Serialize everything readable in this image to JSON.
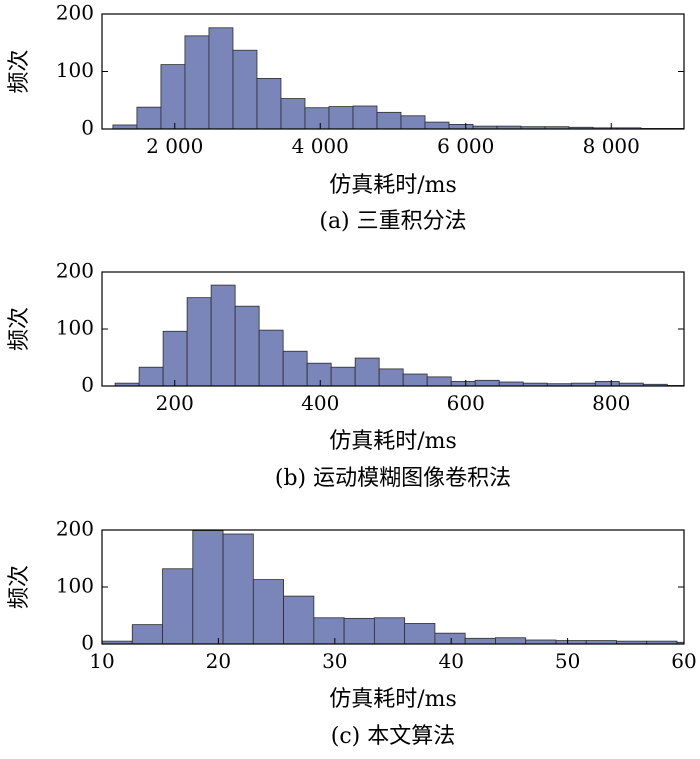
{
  "chart_data": [
    {
      "type": "bar",
      "caption": "(a) 三重积分法",
      "xlabel": "仿真耗时/ms",
      "ylabel": "频次",
      "xlim": [
        1000,
        9000
      ],
      "ylim": [
        0,
        200
      ],
      "xticks": [
        2000,
        4000,
        6000,
        8000
      ],
      "xtick_labels": [
        "2 000",
        "4 000",
        "6 000",
        "8 000"
      ],
      "yticks": [
        0,
        100,
        200
      ],
      "ytick_labels": [
        "0",
        "100",
        "200"
      ],
      "bin_start": 1150,
      "bin_width": 330,
      "values": [
        7,
        38,
        112,
        162,
        176,
        137,
        88,
        53,
        37,
        39,
        40,
        29,
        23,
        12,
        8,
        5,
        5,
        4,
        4,
        3,
        2,
        2,
        1,
        1
      ]
    },
    {
      "type": "bar",
      "caption": "(b) 运动模糊图像卷积法",
      "xlabel": "仿真耗时/ms",
      "ylabel": "频次",
      "xlim": [
        100,
        900
      ],
      "ylim": [
        0,
        200
      ],
      "xticks": [
        200,
        400,
        600,
        800
      ],
      "xtick_labels": [
        "200",
        "400",
        "600",
        "800"
      ],
      "yticks": [
        0,
        100,
        200
      ],
      "ytick_labels": [
        "0",
        "100",
        "200"
      ],
      "bin_start": 118,
      "bin_width": 33,
      "values": [
        5,
        33,
        96,
        155,
        177,
        140,
        98,
        61,
        40,
        33,
        49,
        30,
        21,
        16,
        8,
        10,
        7,
        5,
        4,
        5,
        8,
        5,
        3,
        1,
        1,
        1
      ]
    },
    {
      "type": "bar",
      "caption": "(c) 本文算法",
      "xlabel": "仿真耗时/ms",
      "ylabel": "频次",
      "xlim": [
        10,
        60
      ],
      "ylim": [
        0,
        200
      ],
      "xticks": [
        10,
        20,
        30,
        40,
        50,
        60
      ],
      "xtick_labels": [
        "10",
        "20",
        "30",
        "40",
        "50",
        "60"
      ],
      "yticks": [
        0,
        100,
        200
      ],
      "ytick_labels": [
        "0",
        "100",
        "200"
      ],
      "bin_start": 10,
      "bin_width": 2.6,
      "values": [
        5,
        34,
        132,
        199,
        193,
        113,
        84,
        46,
        45,
        46,
        36,
        19,
        10,
        11,
        7,
        6,
        6,
        5,
        5,
        3,
        1,
        1
      ]
    }
  ]
}
